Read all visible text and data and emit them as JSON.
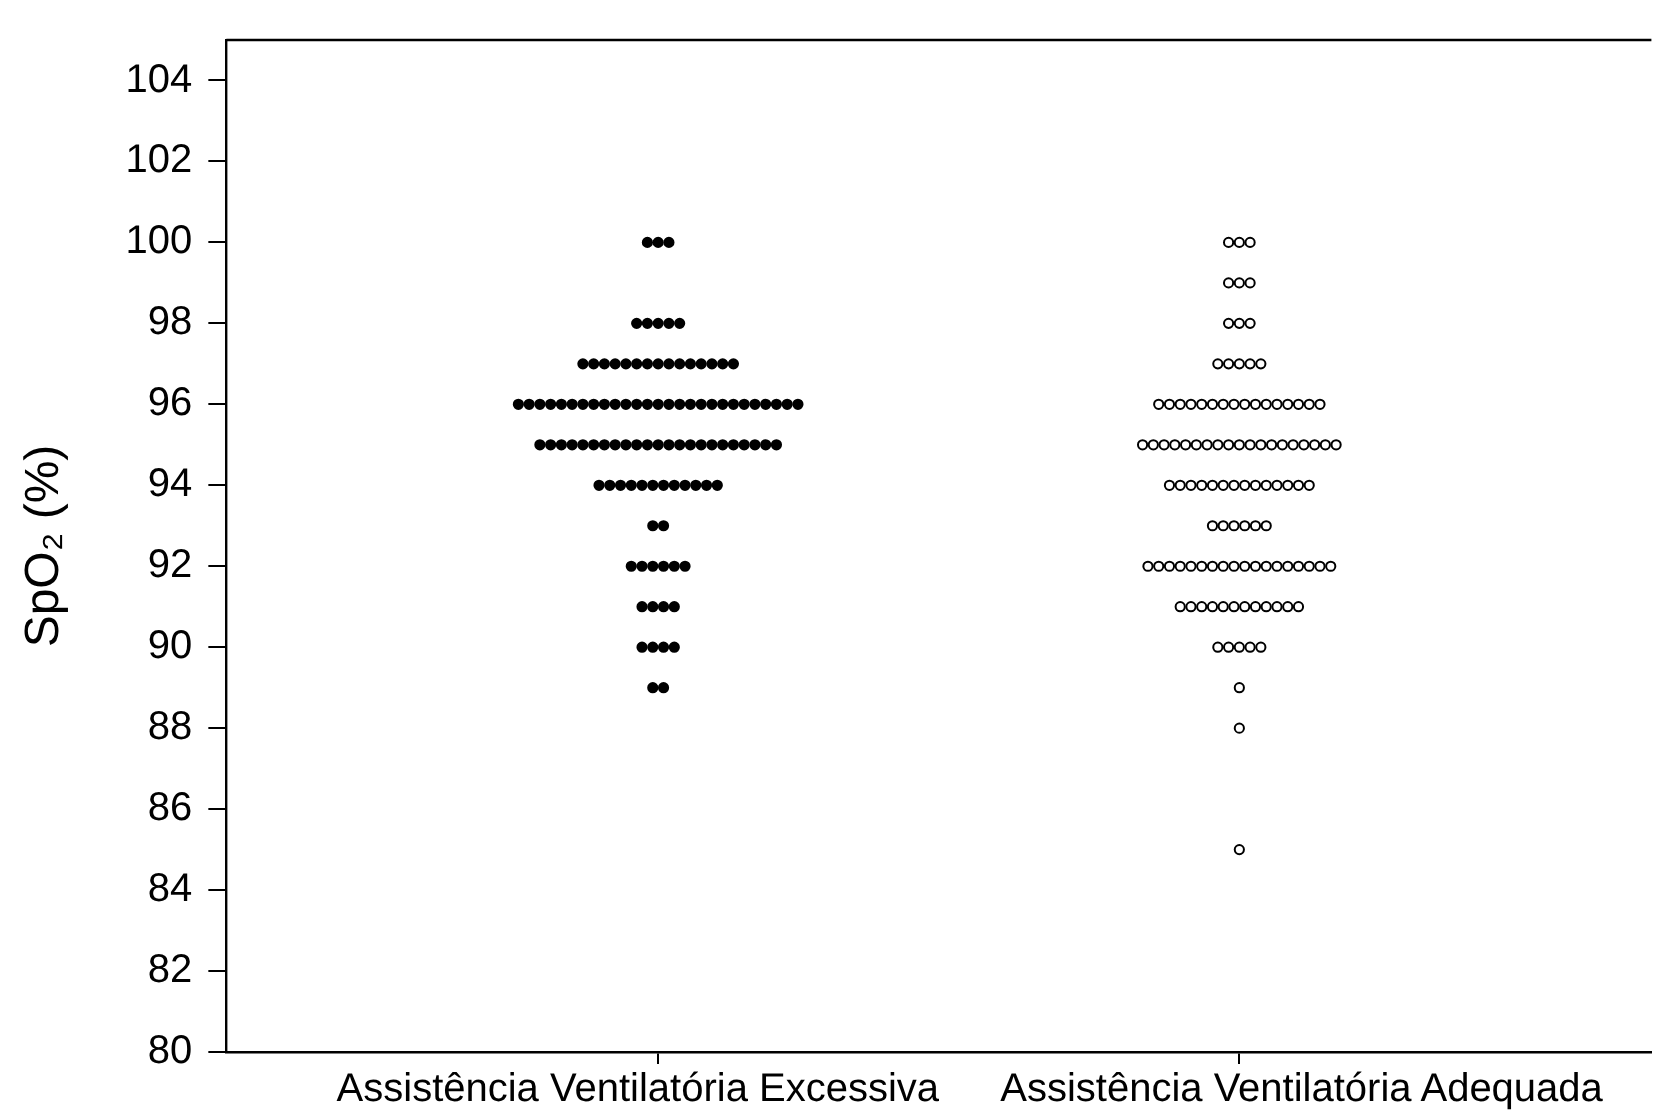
{
  "chart_data": {
    "type": "scatter",
    "ylabel": "SpO₂ (%)",
    "categories": [
      "Assistência Ventilatória Excessiva",
      "Assistência Ventilatória Adequada"
    ],
    "ylim": [
      80,
      105
    ],
    "yticks": [
      80,
      82,
      84,
      86,
      88,
      90,
      92,
      94,
      96,
      98,
      100,
      102,
      104
    ],
    "marker": "circle",
    "series": [
      {
        "color": "#000000",
        "values": [
          100,
          100,
          100,
          98,
          98,
          98,
          98,
          98,
          97,
          97,
          97,
          97,
          97,
          97,
          97,
          97,
          97,
          97,
          97,
          97,
          97,
          97,
          97,
          96,
          96,
          96,
          96,
          96,
          96,
          96,
          96,
          96,
          96,
          96,
          96,
          96,
          96,
          96,
          96,
          96,
          96,
          96,
          96,
          96,
          96,
          96,
          96,
          96,
          96,
          96,
          95,
          95,
          95,
          95,
          95,
          95,
          95,
          95,
          95,
          95,
          95,
          95,
          95,
          95,
          95,
          95,
          95,
          95,
          95,
          95,
          95,
          95,
          95,
          94,
          94,
          94,
          94,
          94,
          94,
          94,
          94,
          94,
          94,
          94,
          94,
          93,
          93,
          92,
          92,
          92,
          92,
          92,
          92,
          91,
          91,
          91,
          91,
          90,
          90,
          90,
          90,
          89,
          89
        ],
        "x": [
          "Assistência Ventilatória Excessiva",
          "Assistência Ventilatória Excessiva",
          "Assistência Ventilatória Excessiva",
          "Assistência Ventilatória Excessiva",
          "Assistência Ventilatória Excessiva",
          "Assistência Ventilatória Excessiva",
          "Assistência Ventilatória Excessiva",
          "Assistência Ventilatória Excessiva",
          "Assistência Ventilatória Excessiva",
          "Assistência Ventilatória Excessiva",
          "Assistência Ventilatória Excessiva",
          "Assistência Ventilatória Excessiva",
          "Assistência Ventilatória Excessiva",
          "Assistência Ventilatória Excessiva",
          "Assistência Ventilatória Excessiva",
          "Assistência Ventilatória Excessiva",
          "Assistência Ventilatória Excessiva",
          "Assistência Ventilatória Excessiva",
          "Assistência Ventilatória Excessiva",
          "Assistência Ventilatória Excessiva",
          "Assistência Ventilatória Excessiva",
          "Assistência Ventilatória Excessiva",
          "Assistência Ventilatória Excessiva",
          "Assistência Ventilatória Excessiva",
          "Assistência Ventilatória Excessiva",
          "Assistência Ventilatória Excessiva",
          "Assistência Ventilatória Excessiva",
          "Assistência Ventilatória Excessiva",
          "Assistência Ventilatória Excessiva",
          "Assistência Ventilatória Excessiva",
          "Assistência Ventilatória Excessiva",
          "Assistência Ventilatória Excessiva",
          "Assistência Ventilatória Excessiva",
          "Assistência Ventilatória Excessiva",
          "Assistência Ventilatória Excessiva",
          "Assistência Ventilatória Excessiva",
          "Assistência Ventilatória Excessiva",
          "Assistência Ventilatória Excessiva",
          "Assistência Ventilatória Excessiva",
          "Assistência Ventilatória Excessiva",
          "Assistência Ventilatória Excessiva",
          "Assistência Ventilatória Excessiva",
          "Assistência Ventilatória Excessiva",
          "Assistência Ventilatória Excessiva",
          "Assistência Ventilatória Excessiva",
          "Assistência Ventilatória Excessiva",
          "Assistência Ventilatória Excessiva",
          "Assistência Ventilatória Excessiva",
          "Assistência Ventilatória Excessiva",
          "Assistência Ventilatória Excessiva",
          "Assistência Ventilatória Excessiva",
          "Assistência Ventilatória Excessiva",
          "Assistência Ventilatória Excessiva",
          "Assistência Ventilatória Excessiva",
          "Assistência Ventilatória Excessiva",
          "Assistência Ventilatória Excessiva",
          "Assistência Ventilatória Excessiva",
          "Assistência Ventilatória Excessiva",
          "Assistência Ventilatória Excessiva",
          "Assistência Ventilatória Excessiva",
          "Assistência Ventilatória Excessiva",
          "Assistência Ventilatória Excessiva",
          "Assistência Ventilatória Excessiva",
          "Assistência Ventilatória Excessiva",
          "Assistência Ventilatória Excessiva",
          "Assistência Ventilatória Excessiva",
          "Assistência Ventilatória Excessiva",
          "Assistência Ventilatória Excessiva",
          "Assistência Ventilatória Excessiva",
          "Assistência Ventilatória Excessiva",
          "Assistência Ventilatória Excessiva",
          "Assistência Ventilatória Excessiva",
          "Assistência Ventilatória Excessiva",
          "Assistência Ventilatória Excessiva",
          "Assistência Ventilatória Excessiva",
          "Assistência Ventilatória Excessiva",
          "Assistência Ventilatória Excessiva",
          "Assistência Ventilatória Excessiva",
          "Assistência Ventilatória Excessiva",
          "Assistência Ventilatória Excessiva",
          "Assistência Ventilatória Excessiva",
          "Assistência Ventilatória Excessiva",
          "Assistência Ventilatória Excessiva",
          "Assistência Ventilatória Excessiva",
          "Assistência Ventilatória Excessiva",
          "Assistência Ventilatória Excessiva",
          "Assistência Ventilatória Excessiva",
          "Assistência Ventilatória Excessiva",
          "Assistência Ventilatória Excessiva",
          "Assistência Ventilatória Excessiva",
          "Assistência Ventilatória Excessiva",
          "Assistência Ventilatória Excessiva",
          "Assistência Ventilatória Excessiva",
          "Assistência Ventilatória Excessiva",
          "Assistência Ventilatória Excessiva",
          "Assistência Ventilatória Excessiva",
          "Assistência Ventilatória Excessiva",
          "Assistência Ventilatória Excessiva",
          "Assistência Ventilatória Excessiva",
          "Assistência Ventilatória Excessiva",
          "Assistência Ventilatória Excessiva",
          "Assistência Ventilatória Excessiva",
          "Assistência Ventilatória Excessiva"
        ]
      },
      {
        "color": "#ffffff",
        "values": [
          100,
          100,
          100,
          99,
          99,
          99,
          98,
          98,
          98,
          97,
          97,
          97,
          97,
          97,
          96,
          96,
          96,
          96,
          96,
          96,
          96,
          96,
          96,
          96,
          96,
          96,
          96,
          96,
          96,
          96,
          95,
          95,
          95,
          95,
          95,
          95,
          95,
          95,
          95,
          95,
          95,
          95,
          95,
          95,
          95,
          95,
          95,
          95,
          95,
          94,
          94,
          94,
          94,
          94,
          94,
          94,
          94,
          94,
          94,
          94,
          94,
          94,
          94,
          93,
          93,
          93,
          93,
          93,
          93,
          92,
          92,
          92,
          92,
          92,
          92,
          92,
          92,
          92,
          92,
          92,
          92,
          92,
          92,
          92,
          92,
          92,
          92,
          91,
          91,
          91,
          91,
          91,
          91,
          91,
          91,
          91,
          91,
          91,
          91,
          90,
          90,
          90,
          90,
          90,
          89,
          88,
          85
        ],
        "x": [
          "Assistência Ventilatória Adequada",
          "Assistência Ventilatória Adequada",
          "Assistência Ventilatória Adequada",
          "Assistência Ventilatória Adequada",
          "Assistência Ventilatória Adequada",
          "Assistência Ventilatória Adequada",
          "Assistência Ventilatória Adequada",
          "Assistência Ventilatória Adequada",
          "Assistência Ventilatória Adequada",
          "Assistência Ventilatória Adequada",
          "Assistência Ventilatória Adequada",
          "Assistência Ventilatória Adequada",
          "Assistência Ventilatória Adequada",
          "Assistência Ventilatória Adequada",
          "Assistência Ventilatória Adequada",
          "Assistência Ventilatória Adequada",
          "Assistência Ventilatória Adequada",
          "Assistência Ventilatória Adequada",
          "Assistência Ventilatória Adequada",
          "Assistência Ventilatória Adequada",
          "Assistência Ventilatória Adequada",
          "Assistência Ventilatória Adequada",
          "Assistência Ventilatória Adequada",
          "Assistência Ventilatória Adequada",
          "Assistência Ventilatória Adequada",
          "Assistência Ventilatória Adequada",
          "Assistência Ventilatória Adequada",
          "Assistência Ventilatória Adequada",
          "Assistência Ventilatória Adequada",
          "Assistência Ventilatória Adequada",
          "Assistência Ventilatória Adequada",
          "Assistência Ventilatória Adequada",
          "Assistência Ventilatória Adequada",
          "Assistência Ventilatória Adequada",
          "Assistência Ventilatória Adequada",
          "Assistência Ventilatória Adequada",
          "Assistência Ventilatória Adequada",
          "Assistência Ventilatória Adequada",
          "Assistência Ventilatória Adequada",
          "Assistência Ventilatória Adequada",
          "Assistência Ventilatória Adequada",
          "Assistência Ventilatória Adequada",
          "Assistência Ventilatória Adequada",
          "Assistência Ventilatória Adequada",
          "Assistência Ventilatória Adequada",
          "Assistência Ventilatória Adequada",
          "Assistência Ventilatória Adequada",
          "Assistência Ventilatória Adequada",
          "Assistência Ventilatória Adequada",
          "Assistência Ventilatória Adequada",
          "Assistência Ventilatória Adequada",
          "Assistência Ventilatória Adequada",
          "Assistência Ventilatória Adequada",
          "Assistência Ventilatória Adequada",
          "Assistência Ventilatória Adequada",
          "Assistência Ventilatória Adequada",
          "Assistência Ventilatória Adequada",
          "Assistência Ventilatória Adequada",
          "Assistência Ventilatória Adequada",
          "Assistência Ventilatória Adequada",
          "Assistência Ventilatória Adequada",
          "Assistência Ventilatória Adequada",
          "Assistência Ventilatória Adequada",
          "Assistência Ventilatória Adequada",
          "Assistência Ventilatória Adequada",
          "Assistência Ventilatória Adequada",
          "Assistência Ventilatória Adequada",
          "Assistência Ventilatória Adequada",
          "Assistência Ventilatória Adequada",
          "Assistência Ventilatória Adequada",
          "Assistência Ventilatória Adequada",
          "Assistência Ventilatória Adequada",
          "Assistência Ventilatória Adequada",
          "Assistência Ventilatória Adequada",
          "Assistência Ventilatória Adequada",
          "Assistência Ventilatória Adequada",
          "Assistência Ventilatória Adequada",
          "Assistência Ventilatória Adequada",
          "Assistência Ventilatória Adequada",
          "Assistência Ventilatória Adequada",
          "Assistência Ventilatória Adequada",
          "Assistência Ventilatória Adequada",
          "Assistência Ventilatória Adequada",
          "Assistência Ventilatória Adequada",
          "Assistência Ventilatória Adequada",
          "Assistência Ventilatória Adequada",
          "Assistência Ventilatória Adequada",
          "Assistência Ventilatória Adequada",
          "Assistência Ventilatória Adequada",
          "Assistência Ventilatória Adequada",
          "Assistência Ventilatória Adequada",
          "Assistência Ventilatória Adequada",
          "Assistência Ventilatória Adequada",
          "Assistência Ventilatória Adequada",
          "Assistência Ventilatória Adequada",
          "Assistência Ventilatória Adequada",
          "Assistência Ventilatória Adequada",
          "Assistência Ventilatória Adequada",
          "Assistência Ventilatória Adequada",
          "Assistência Ventilatória Adequada",
          "Assistência Ventilatória Adequada",
          "Assistência Ventilatória Adequada",
          "Assistência Ventilatória Adequada",
          "Assistência Ventilatória Adequada",
          "Assistência Ventilatória Adequada",
          "Assistência Ventilatória Adequada",
          "Assistência Ventilatória Adequada"
        ]
      }
    ]
  }
}
